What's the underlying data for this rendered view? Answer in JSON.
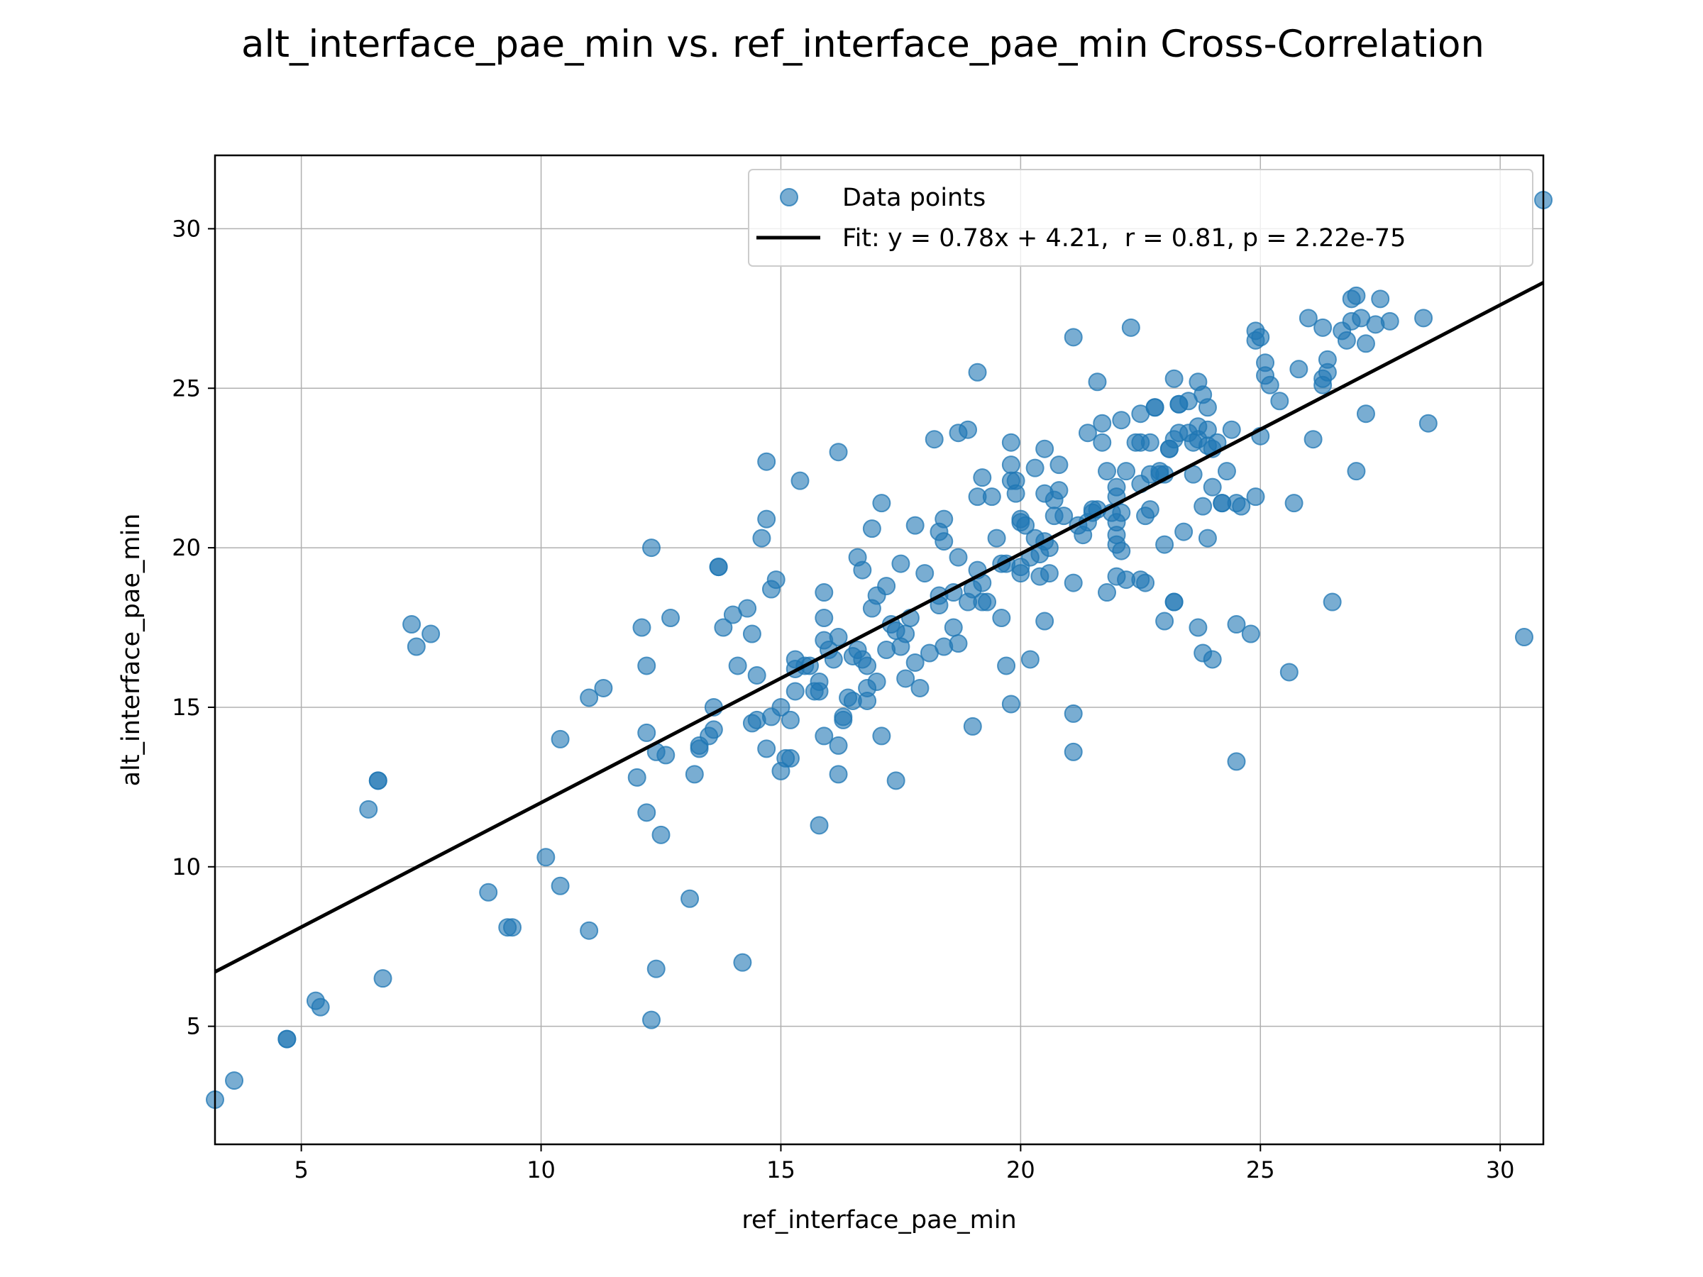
{
  "chart_data": {
    "type": "scatter",
    "title": "alt_interface_pae_min vs. ref_interface_pae_min Cross-Correlation",
    "xlabel": "ref_interface_pae_min",
    "ylabel": "alt_interface_pae_min",
    "xlim": [
      3.2,
      30.9
    ],
    "ylim": [
      1.3,
      32.3
    ],
    "xticks": [
      5,
      10,
      15,
      20,
      25,
      30
    ],
    "yticks": [
      5,
      10,
      15,
      20,
      25,
      30
    ],
    "grid": true,
    "legend_placement": "upper-right",
    "colors": {
      "points": "#1f77b4",
      "fit": "#000000"
    },
    "series": [
      {
        "name": "Data points",
        "kind": "scatter",
        "points": [
          [
            3.2,
            2.7
          ],
          [
            3.6,
            3.3
          ],
          [
            4.7,
            4.6
          ],
          [
            4.7,
            4.6
          ],
          [
            5.3,
            5.8
          ],
          [
            5.4,
            5.6
          ],
          [
            6.4,
            11.8
          ],
          [
            6.6,
            12.7
          ],
          [
            6.6,
            12.7
          ],
          [
            6.7,
            6.5
          ],
          [
            7.3,
            17.6
          ],
          [
            7.4,
            16.9
          ],
          [
            7.7,
            17.3
          ],
          [
            8.9,
            9.2
          ],
          [
            9.3,
            8.1
          ],
          [
            9.4,
            8.1
          ],
          [
            10.1,
            10.3
          ],
          [
            10.4,
            14.0
          ],
          [
            10.4,
            9.4
          ],
          [
            11.0,
            15.3
          ],
          [
            11.0,
            8.0
          ],
          [
            11.3,
            15.6
          ],
          [
            12.0,
            12.8
          ],
          [
            12.1,
            17.5
          ],
          [
            12.2,
            11.7
          ],
          [
            12.2,
            16.3
          ],
          [
            12.2,
            14.2
          ],
          [
            12.3,
            20.0
          ],
          [
            12.3,
            5.2
          ],
          [
            12.4,
            13.6
          ],
          [
            12.4,
            6.8
          ],
          [
            12.5,
            11.0
          ],
          [
            12.6,
            13.5
          ],
          [
            12.7,
            17.8
          ],
          [
            13.1,
            9.0
          ],
          [
            13.2,
            12.9
          ],
          [
            13.3,
            13.8
          ],
          [
            13.3,
            13.7
          ],
          [
            13.5,
            14.1
          ],
          [
            13.6,
            14.3
          ],
          [
            13.6,
            15.0
          ],
          [
            13.7,
            19.4
          ],
          [
            13.7,
            19.4
          ],
          [
            13.8,
            17.5
          ],
          [
            14.0,
            17.9
          ],
          [
            14.1,
            16.3
          ],
          [
            14.2,
            7.0
          ],
          [
            14.3,
            18.1
          ],
          [
            14.4,
            14.5
          ],
          [
            14.4,
            17.3
          ],
          [
            14.5,
            16.0
          ],
          [
            14.5,
            14.6
          ],
          [
            14.6,
            20.3
          ],
          [
            14.7,
            20.9
          ],
          [
            14.7,
            22.7
          ],
          [
            14.7,
            13.7
          ],
          [
            14.8,
            14.7
          ],
          [
            14.8,
            18.7
          ],
          [
            14.9,
            19.0
          ],
          [
            15.0,
            15.0
          ],
          [
            15.0,
            13.0
          ],
          [
            15.1,
            13.4
          ],
          [
            15.2,
            13.4
          ],
          [
            15.2,
            14.6
          ],
          [
            15.3,
            16.5
          ],
          [
            15.3,
            15.5
          ],
          [
            15.3,
            16.2
          ],
          [
            15.4,
            22.1
          ],
          [
            15.5,
            16.3
          ],
          [
            15.6,
            16.3
          ],
          [
            15.7,
            15.5
          ],
          [
            15.8,
            15.5
          ],
          [
            15.8,
            15.8
          ],
          [
            15.8,
            11.3
          ],
          [
            15.9,
            18.6
          ],
          [
            15.9,
            17.8
          ],
          [
            15.9,
            17.1
          ],
          [
            15.9,
            14.1
          ],
          [
            16.0,
            16.8
          ],
          [
            16.1,
            16.5
          ],
          [
            16.2,
            23.0
          ],
          [
            16.2,
            12.9
          ],
          [
            16.2,
            13.8
          ],
          [
            16.2,
            17.2
          ],
          [
            16.3,
            14.6
          ],
          [
            16.3,
            14.7
          ],
          [
            16.4,
            15.3
          ],
          [
            16.5,
            15.2
          ],
          [
            16.5,
            16.6
          ],
          [
            16.6,
            19.7
          ],
          [
            16.6,
            16.8
          ],
          [
            16.7,
            19.3
          ],
          [
            16.7,
            16.5
          ],
          [
            16.8,
            16.3
          ],
          [
            16.8,
            15.6
          ],
          [
            16.8,
            15.2
          ],
          [
            16.9,
            20.6
          ],
          [
            16.9,
            18.1
          ],
          [
            17.0,
            18.5
          ],
          [
            17.0,
            15.8
          ],
          [
            17.1,
            21.4
          ],
          [
            17.1,
            14.1
          ],
          [
            17.2,
            16.8
          ],
          [
            17.2,
            18.8
          ],
          [
            17.3,
            17.6
          ],
          [
            17.4,
            17.4
          ],
          [
            17.4,
            12.7
          ],
          [
            17.5,
            19.5
          ],
          [
            17.5,
            16.9
          ],
          [
            17.6,
            15.9
          ],
          [
            17.6,
            17.3
          ],
          [
            17.7,
            17.8
          ],
          [
            17.8,
            20.7
          ],
          [
            17.8,
            16.4
          ],
          [
            17.9,
            15.6
          ],
          [
            18.0,
            19.2
          ],
          [
            18.1,
            16.7
          ],
          [
            18.2,
            23.4
          ],
          [
            18.3,
            20.5
          ],
          [
            18.3,
            18.5
          ],
          [
            18.3,
            18.2
          ],
          [
            18.4,
            20.2
          ],
          [
            18.4,
            20.9
          ],
          [
            18.4,
            16.9
          ],
          [
            18.6,
            17.5
          ],
          [
            18.6,
            18.6
          ],
          [
            18.7,
            23.6
          ],
          [
            18.7,
            19.7
          ],
          [
            18.7,
            17.0
          ],
          [
            18.9,
            23.7
          ],
          [
            18.9,
            18.3
          ],
          [
            19.0,
            14.4
          ],
          [
            19.0,
            18.7
          ],
          [
            19.1,
            25.5
          ],
          [
            19.1,
            21.6
          ],
          [
            19.1,
            19.3
          ],
          [
            19.2,
            22.2
          ],
          [
            19.2,
            18.9
          ],
          [
            19.2,
            18.3
          ],
          [
            19.3,
            18.3
          ],
          [
            19.4,
            21.6
          ],
          [
            19.5,
            20.3
          ],
          [
            19.6,
            19.5
          ],
          [
            19.6,
            17.8
          ],
          [
            19.7,
            19.5
          ],
          [
            19.7,
            16.3
          ],
          [
            19.8,
            22.6
          ],
          [
            19.8,
            22.1
          ],
          [
            19.8,
            23.3
          ],
          [
            19.8,
            15.1
          ],
          [
            19.9,
            22.1
          ],
          [
            19.9,
            21.7
          ],
          [
            20.0,
            20.9
          ],
          [
            20.0,
            20.8
          ],
          [
            20.0,
            19.4
          ],
          [
            20.0,
            19.2
          ],
          [
            20.1,
            20.7
          ],
          [
            20.2,
            16.5
          ],
          [
            20.2,
            19.7
          ],
          [
            20.3,
            22.5
          ],
          [
            20.3,
            20.3
          ],
          [
            20.4,
            19.8
          ],
          [
            20.4,
            19.1
          ],
          [
            20.5,
            23.1
          ],
          [
            20.5,
            21.7
          ],
          [
            20.5,
            20.2
          ],
          [
            20.5,
            17.7
          ],
          [
            20.6,
            20.0
          ],
          [
            20.6,
            19.2
          ],
          [
            20.7,
            21.5
          ],
          [
            20.7,
            21.0
          ],
          [
            20.8,
            21.8
          ],
          [
            20.8,
            22.6
          ],
          [
            20.9,
            21.0
          ],
          [
            21.1,
            26.6
          ],
          [
            21.1,
            18.9
          ],
          [
            21.1,
            14.8
          ],
          [
            21.1,
            13.6
          ],
          [
            21.2,
            20.7
          ],
          [
            21.3,
            20.4
          ],
          [
            21.4,
            23.6
          ],
          [
            21.4,
            20.8
          ],
          [
            21.5,
            21.2
          ],
          [
            21.5,
            21.1
          ],
          [
            21.6,
            25.2
          ],
          [
            21.6,
            21.2
          ],
          [
            21.7,
            23.9
          ],
          [
            21.7,
            23.3
          ],
          [
            21.8,
            22.4
          ],
          [
            21.8,
            18.6
          ],
          [
            21.9,
            21.1
          ],
          [
            22.0,
            21.9
          ],
          [
            22.0,
            20.8
          ],
          [
            22.0,
            20.4
          ],
          [
            22.0,
            20.1
          ],
          [
            22.0,
            21.6
          ],
          [
            22.0,
            19.1
          ],
          [
            22.1,
            19.9
          ],
          [
            22.1,
            21.1
          ],
          [
            22.1,
            24.0
          ],
          [
            22.2,
            22.4
          ],
          [
            22.2,
            19.0
          ],
          [
            22.3,
            26.9
          ],
          [
            22.4,
            23.3
          ],
          [
            22.5,
            23.3
          ],
          [
            22.5,
            24.2
          ],
          [
            22.5,
            22.0
          ],
          [
            22.5,
            19.0
          ],
          [
            22.6,
            21.0
          ],
          [
            22.6,
            18.9
          ],
          [
            22.7,
            22.3
          ],
          [
            22.7,
            21.2
          ],
          [
            22.7,
            23.3
          ],
          [
            22.8,
            24.4
          ],
          [
            22.8,
            24.4
          ],
          [
            22.9,
            22.4
          ],
          [
            22.9,
            22.3
          ],
          [
            23.0,
            22.3
          ],
          [
            23.0,
            17.7
          ],
          [
            23.0,
            20.1
          ],
          [
            23.1,
            23.1
          ],
          [
            23.1,
            23.1
          ],
          [
            23.2,
            23.4
          ],
          [
            23.2,
            25.3
          ],
          [
            23.2,
            18.3
          ],
          [
            23.2,
            18.3
          ],
          [
            23.3,
            23.6
          ],
          [
            23.3,
            24.5
          ],
          [
            23.3,
            24.5
          ],
          [
            23.4,
            20.5
          ],
          [
            23.5,
            24.6
          ],
          [
            23.5,
            23.6
          ],
          [
            23.6,
            23.3
          ],
          [
            23.6,
            22.3
          ],
          [
            23.7,
            25.2
          ],
          [
            23.7,
            17.5
          ],
          [
            23.7,
            23.4
          ],
          [
            23.7,
            23.8
          ],
          [
            23.8,
            21.3
          ],
          [
            23.8,
            24.8
          ],
          [
            23.8,
            16.7
          ],
          [
            23.9,
            23.2
          ],
          [
            23.9,
            20.3
          ],
          [
            23.9,
            24.4
          ],
          [
            23.9,
            23.7
          ],
          [
            24.0,
            21.9
          ],
          [
            24.0,
            23.1
          ],
          [
            24.0,
            16.5
          ],
          [
            24.1,
            23.3
          ],
          [
            24.2,
            21.4
          ],
          [
            24.2,
            21.4
          ],
          [
            24.3,
            22.4
          ],
          [
            24.4,
            23.7
          ],
          [
            24.5,
            21.4
          ],
          [
            24.5,
            17.6
          ],
          [
            24.5,
            13.3
          ],
          [
            24.6,
            21.3
          ],
          [
            24.8,
            17.3
          ],
          [
            24.9,
            26.8
          ],
          [
            24.9,
            26.5
          ],
          [
            24.9,
            21.6
          ],
          [
            25.0,
            23.5
          ],
          [
            25.0,
            26.6
          ],
          [
            25.1,
            25.8
          ],
          [
            25.1,
            25.4
          ],
          [
            25.2,
            25.1
          ],
          [
            25.4,
            24.6
          ],
          [
            25.6,
            16.1
          ],
          [
            25.7,
            21.4
          ],
          [
            25.8,
            25.6
          ],
          [
            26.0,
            27.2
          ],
          [
            26.1,
            23.4
          ],
          [
            26.3,
            26.9
          ],
          [
            26.3,
            25.1
          ],
          [
            26.3,
            25.3
          ],
          [
            26.4,
            25.9
          ],
          [
            26.4,
            25.5
          ],
          [
            26.5,
            18.3
          ],
          [
            26.7,
            26.8
          ],
          [
            26.8,
            26.5
          ],
          [
            26.9,
            27.8
          ],
          [
            26.9,
            27.1
          ],
          [
            27.0,
            27.9
          ],
          [
            27.0,
            22.4
          ],
          [
            27.1,
            27.2
          ],
          [
            27.2,
            26.4
          ],
          [
            27.2,
            24.2
          ],
          [
            27.4,
            27.0
          ],
          [
            27.5,
            27.8
          ],
          [
            27.7,
            27.1
          ],
          [
            28.4,
            27.2
          ],
          [
            28.5,
            23.9
          ],
          [
            30.5,
            17.2
          ],
          [
            30.9,
            30.9
          ]
        ]
      },
      {
        "name": "Fit: y = 0.78x + 4.21,  r = 0.81, p = 2.22e-75",
        "kind": "line",
        "slope": 0.78,
        "intercept": 4.21,
        "x_range": [
          3.2,
          30.9
        ]
      }
    ]
  }
}
